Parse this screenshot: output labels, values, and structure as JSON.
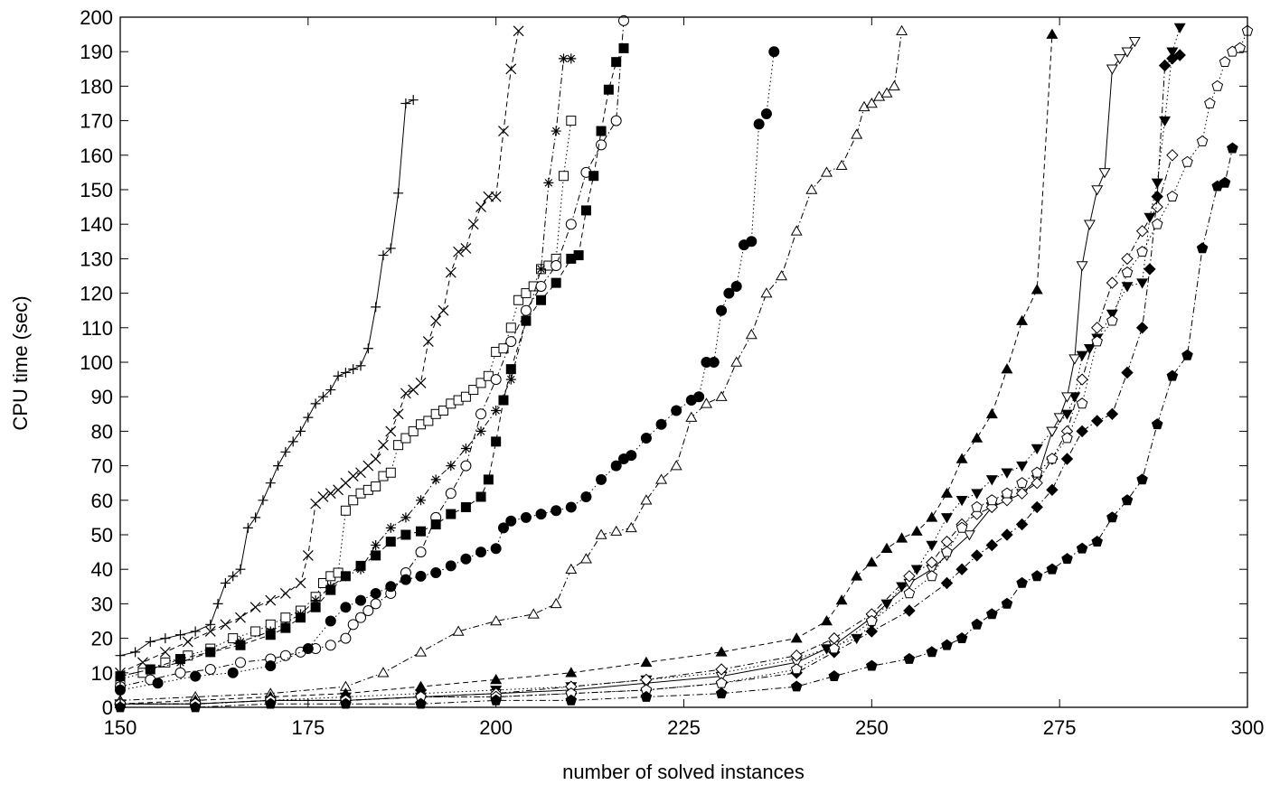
{
  "chart_data": {
    "type": "line",
    "title": "",
    "xlabel": "number of solved instances",
    "ylabel": "CPU time (sec)",
    "xlim": [
      150,
      300
    ],
    "ylim": [
      0,
      200
    ],
    "xticks": [
      150,
      175,
      200,
      225,
      250,
      275,
      300
    ],
    "yticks": [
      0,
      10,
      20,
      30,
      40,
      50,
      60,
      70,
      80,
      90,
      100,
      110,
      120,
      130,
      140,
      150,
      160,
      170,
      180,
      190,
      200
    ],
    "grid": false,
    "legend": "none",
    "series": [
      {
        "marker": "plus",
        "line": "solid",
        "x": [
          150,
          152,
          154,
          156,
          158,
          160,
          162,
          163,
          164,
          165,
          166,
          167,
          168,
          169,
          170,
          171,
          172,
          173,
          174,
          175,
          176,
          177,
          178,
          179,
          180,
          181,
          182,
          183,
          184,
          185,
          186,
          187,
          188,
          189
        ],
        "y": [
          15,
          16,
          19,
          20,
          21,
          22,
          24,
          30,
          36,
          38,
          40,
          52,
          55,
          60,
          65,
          70,
          74,
          77,
          80,
          84,
          88,
          90,
          92,
          96,
          97,
          98,
          99,
          104,
          116,
          131,
          133,
          149,
          175,
          176
        ]
      },
      {
        "marker": "cross",
        "line": "dashed",
        "x": [
          150,
          153,
          156,
          159,
          162,
          164,
          166,
          168,
          170,
          172,
          174,
          175,
          176,
          177,
          178,
          179,
          180,
          181,
          182,
          183,
          184,
          185,
          186,
          187,
          188,
          189,
          190,
          191,
          192,
          193,
          194,
          195,
          196,
          197,
          198,
          199,
          200,
          201,
          202,
          203
        ],
        "y": [
          10,
          13,
          16,
          19,
          22,
          24,
          26,
          29,
          31,
          33,
          36,
          44,
          59,
          61,
          62,
          63,
          65,
          67,
          68,
          70,
          72,
          76,
          80,
          85,
          91,
          92,
          94,
          106,
          112,
          115,
          126,
          132,
          133,
          140,
          145,
          148,
          148,
          167,
          185,
          196
        ]
      },
      {
        "marker": "open-square",
        "line": "dotted",
        "x": [
          150,
          153,
          156,
          159,
          162,
          165,
          168,
          170,
          172,
          174,
          176,
          177,
          178,
          179,
          180,
          181,
          182,
          183,
          184,
          185,
          186,
          187,
          188,
          189,
          190,
          191,
          192,
          193,
          194,
          195,
          196,
          197,
          198,
          199,
          200,
          201,
          202,
          203,
          204,
          205,
          206,
          207,
          208,
          209,
          210
        ],
        "y": [
          8,
          10,
          13,
          15,
          17,
          20,
          22,
          24,
          26,
          28,
          32,
          36,
          38,
          39,
          57,
          60,
          62,
          63,
          64,
          67,
          68,
          76,
          78,
          80,
          82,
          83,
          85,
          86,
          88,
          89,
          90,
          92,
          94,
          96,
          103,
          104,
          110,
          118,
          120,
          122,
          127,
          128,
          130,
          154,
          170
        ]
      },
      {
        "marker": "asterisk",
        "line": "dashdot",
        "x": [
          150,
          154,
          158,
          162,
          166,
          170,
          174,
          176,
          178,
          180,
          182,
          184,
          186,
          188,
          190,
          192,
          194,
          196,
          198,
          200,
          202,
          204,
          206,
          207,
          208,
          209,
          210
        ],
        "y": [
          9,
          11,
          13,
          16,
          19,
          22,
          27,
          31,
          35,
          38,
          40,
          47,
          52,
          55,
          60,
          66,
          70,
          75,
          80,
          86,
          95,
          112,
          127,
          152,
          167,
          188,
          188
        ]
      },
      {
        "marker": "open-circle",
        "line": "dashdot",
        "x": [
          150,
          154,
          158,
          162,
          166,
          170,
          172,
          174,
          176,
          178,
          180,
          181,
          182,
          183,
          184,
          186,
          188,
          190,
          192,
          194,
          196,
          198,
          200,
          202,
          204,
          206,
          208,
          210,
          212,
          214,
          216,
          217
        ],
        "y": [
          6,
          8,
          10,
          11,
          13,
          14,
          15,
          16,
          17,
          18,
          20,
          24,
          26,
          28,
          30,
          33,
          39,
          45,
          55,
          62,
          70,
          85,
          95,
          106,
          115,
          122,
          128,
          140,
          155,
          163,
          170,
          199
        ]
      },
      {
        "marker": "filled-square",
        "line": "dashed",
        "x": [
          150,
          154,
          158,
          162,
          166,
          170,
          172,
          174,
          176,
          178,
          180,
          182,
          184,
          186,
          188,
          190,
          192,
          194,
          196,
          198,
          199,
          200,
          201,
          202,
          204,
          206,
          208,
          210,
          211,
          212,
          213,
          214,
          215,
          216,
          217
        ],
        "y": [
          9,
          11,
          14,
          16,
          18,
          21,
          23,
          26,
          29,
          34,
          38,
          41,
          44,
          48,
          50,
          51,
          53,
          56,
          58,
          61,
          66,
          77,
          89,
          98,
          112,
          118,
          123,
          130,
          131,
          144,
          154,
          167,
          179,
          187,
          191
        ]
      },
      {
        "marker": "filled-circle",
        "line": "dotted",
        "x": [
          150,
          155,
          160,
          165,
          170,
          175,
          178,
          180,
          182,
          184,
          186,
          188,
          190,
          192,
          194,
          196,
          198,
          200,
          201,
          202,
          204,
          206,
          208,
          210,
          212,
          214,
          216,
          217,
          218,
          220,
          222,
          224,
          226,
          227,
          228,
          229,
          230,
          231,
          232,
          233,
          234,
          235,
          236,
          237
        ],
        "y": [
          5,
          7,
          9,
          10,
          12,
          17,
          25,
          29,
          31,
          33,
          35,
          37,
          38,
          39,
          41,
          43,
          45,
          46,
          52,
          54,
          55,
          56,
          57,
          58,
          61,
          66,
          70,
          72,
          73,
          78,
          82,
          86,
          89,
          90,
          100,
          100,
          115,
          120,
          122,
          134,
          135,
          169,
          172,
          190
        ]
      },
      {
        "marker": "open-triangle-up",
        "line": "dashdot",
        "x": [
          150,
          160,
          170,
          180,
          185,
          190,
          195,
          200,
          205,
          208,
          210,
          212,
          214,
          216,
          218,
          220,
          222,
          224,
          226,
          228,
          230,
          232,
          234,
          236,
          238,
          240,
          242,
          244,
          246,
          248,
          249,
          250,
          251,
          252,
          253,
          254
        ],
        "y": [
          2,
          3,
          4,
          6,
          10,
          16,
          22,
          25,
          27,
          30,
          40,
          43,
          50,
          51,
          52,
          60,
          66,
          70,
          84,
          88,
          90,
          100,
          108,
          120,
          125,
          138,
          150,
          155,
          157,
          166,
          174,
          175,
          177,
          178,
          180,
          196
        ]
      },
      {
        "marker": "filled-triangle-up",
        "line": "dashed",
        "x": [
          150,
          160,
          170,
          180,
          190,
          200,
          210,
          220,
          230,
          240,
          244,
          246,
          248,
          250,
          252,
          254,
          256,
          258,
          260,
          262,
          264,
          266,
          268,
          270,
          272,
          274
        ],
        "y": [
          1,
          2,
          3,
          4,
          6,
          8,
          10,
          13,
          16,
          20,
          25,
          31,
          38,
          42,
          46,
          49,
          51,
          55,
          62,
          72,
          78,
          85,
          98,
          112,
          121,
          195
        ]
      },
      {
        "marker": "filled-triangle-down",
        "line": "dotted",
        "x": [
          150,
          160,
          170,
          180,
          190,
          200,
          210,
          220,
          230,
          240,
          244,
          248,
          250,
          252,
          254,
          256,
          258,
          260,
          262,
          264,
          266,
          268,
          270,
          272,
          274,
          276,
          277,
          278,
          279,
          280,
          282,
          284,
          286,
          287,
          288,
          289,
          290,
          291
        ],
        "y": [
          1,
          1,
          2,
          3,
          4,
          5,
          6,
          8,
          10,
          14,
          17,
          20,
          24,
          30,
          35,
          40,
          47,
          55,
          60,
          62,
          66,
          68,
          70,
          75,
          80,
          85,
          90,
          102,
          104,
          107,
          114,
          122,
          123,
          142,
          152,
          170,
          190,
          197
        ]
      },
      {
        "marker": "open-triangle-down",
        "line": "solid",
        "x": [
          150,
          160,
          170,
          180,
          190,
          200,
          210,
          220,
          230,
          240,
          245,
          250,
          255,
          258,
          260,
          263,
          266,
          268,
          270,
          272,
          274,
          275,
          276,
          277,
          278,
          279,
          280,
          281,
          282,
          283,
          284,
          285
        ],
        "y": [
          1,
          1,
          2,
          2,
          3,
          4,
          5,
          7,
          9,
          13,
          18,
          26,
          36,
          40,
          44,
          50,
          58,
          60,
          62,
          66,
          80,
          84,
          90,
          101,
          128,
          140,
          150,
          155,
          185,
          188,
          190,
          193
        ]
      },
      {
        "marker": "open-diamond",
        "line": "dashdot",
        "x": [
          150,
          160,
          170,
          180,
          190,
          200,
          210,
          220,
          230,
          240,
          245,
          250,
          255,
          258,
          260,
          262,
          264,
          266,
          268,
          270,
          272,
          274,
          276,
          278,
          280,
          282,
          284,
          286,
          288,
          290
        ],
        "y": [
          1,
          1,
          2,
          2,
          3,
          4,
          6,
          8,
          11,
          15,
          20,
          27,
          38,
          42,
          48,
          53,
          56,
          58,
          60,
          62,
          65,
          72,
          80,
          95,
          110,
          123,
          130,
          138,
          145,
          160
        ]
      },
      {
        "marker": "filled-diamond",
        "line": "dashdot",
        "x": [
          150,
          160,
          170,
          180,
          190,
          200,
          210,
          220,
          230,
          240,
          245,
          250,
          255,
          260,
          262,
          264,
          266,
          268,
          270,
          272,
          274,
          276,
          278,
          280,
          282,
          284,
          286,
          287,
          288,
          289,
          290,
          291
        ],
        "y": [
          1,
          1,
          2,
          2,
          3,
          3,
          4,
          5,
          7,
          10,
          16,
          22,
          28,
          36,
          40,
          44,
          47,
          50,
          53,
          58,
          63,
          72,
          80,
          83,
          85,
          97,
          110,
          127,
          148,
          186,
          188,
          189
        ]
      },
      {
        "marker": "open-pentagon",
        "line": "dotted",
        "x": [
          150,
          160,
          170,
          180,
          190,
          200,
          210,
          220,
          230,
          240,
          245,
          250,
          255,
          258,
          260,
          262,
          264,
          266,
          268,
          270,
          272,
          274,
          276,
          278,
          280,
          282,
          284,
          286,
          288,
          290,
          292,
          294,
          295,
          296,
          297,
          298,
          299,
          300
        ],
        "y": [
          1,
          1,
          2,
          2,
          3,
          3,
          4,
          5,
          7,
          11,
          17,
          25,
          33,
          38,
          45,
          52,
          58,
          60,
          62,
          65,
          68,
          72,
          78,
          88,
          106,
          112,
          126,
          132,
          140,
          148,
          158,
          164,
          175,
          180,
          187,
          190,
          191,
          196
        ]
      },
      {
        "marker": "filled-pentagon",
        "line": "dashdot",
        "x": [
          150,
          160,
          170,
          180,
          190,
          200,
          210,
          220,
          230,
          240,
          245,
          250,
          255,
          258,
          260,
          262,
          264,
          266,
          268,
          270,
          272,
          274,
          276,
          278,
          280,
          282,
          284,
          286,
          288,
          290,
          292,
          294,
          296,
          297,
          298
        ],
        "y": [
          0,
          0,
          1,
          1,
          1,
          2,
          2,
          3,
          4,
          6,
          9,
          12,
          14,
          16,
          18,
          20,
          24,
          27,
          30,
          36,
          38,
          40,
          43,
          46,
          48,
          55,
          60,
          66,
          82,
          96,
          102,
          133,
          151,
          152,
          162
        ]
      }
    ]
  }
}
